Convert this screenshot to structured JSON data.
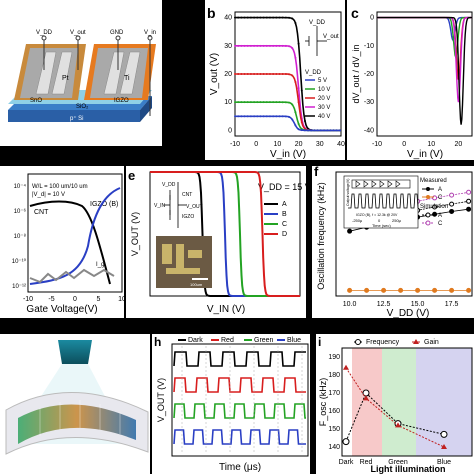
{
  "colors": {
    "black": "#000000",
    "blue": "#2a3fc4",
    "green": "#23a323",
    "red": "#d81e1e",
    "magenta": "#d020d0",
    "gray": "#777777",
    "orange": "#e07a1f",
    "purple": "#b040b0"
  },
  "panel_a": {
    "terminals": [
      "V_DD",
      "V_out",
      "GND",
      "V_in"
    ],
    "layers": [
      "Pt",
      "Ti",
      "SnO",
      "IGZO",
      "SiO₂",
      "p⁺ Si"
    ]
  },
  "panel_b": {
    "label": "b",
    "xlabel": "V_in (V)",
    "ylabel": "V_out (V)",
    "xticks": [
      "-10",
      "0",
      "10",
      "20",
      "30",
      "40"
    ],
    "yticks": [
      "0",
      "10",
      "20",
      "30",
      "40"
    ],
    "circuit": [
      "V_DD",
      "V_out"
    ],
    "legend_title": "V_DD",
    "legend": [
      "5 V",
      "10 V",
      "20 V",
      "30 V",
      "40 V"
    ]
  },
  "panel_c": {
    "label": "c",
    "xlabel": "V_in (V)",
    "ylabel": "dV_out / dV_in",
    "xticks": [
      "-10",
      "0",
      "10",
      "20"
    ],
    "yticks": [
      "0",
      "-10",
      "-20",
      "-30",
      "-40"
    ]
  },
  "panel_d": {
    "annotations": [
      "W/L = 100 um/10 um",
      "|V_d| = 10 V"
    ],
    "series_labels": [
      "CNT",
      "IGZO (B)",
      "I_g"
    ],
    "xlabel": "Gate Voltage(V)",
    "xticks": [
      "-10",
      "-5",
      "0",
      "5",
      "10"
    ],
    "yticks": [
      "10⁻⁴",
      "10⁻⁶",
      "10⁻⁸",
      "10⁻¹⁰",
      "10⁻¹²"
    ]
  },
  "panel_e": {
    "label": "e",
    "title": "V_DD = 15 V",
    "xlabel": "V_IN (V)",
    "ylabel": "V_OUT (V)",
    "circuit": [
      "V_DD",
      "V_IN",
      "CNT",
      "IGZO",
      "V_OUT"
    ],
    "inset_scale": "100um",
    "legend": [
      "A",
      "B",
      "C",
      "D"
    ]
  },
  "panel_f": {
    "label": "f",
    "ylabel": "Oscillation frequency (kHz)",
    "xlabel": "V_DD (V)",
    "xticks": [
      "10.0",
      "12.5",
      "15.0",
      "17.5"
    ],
    "inset": {
      "xlabel": "Time (sec)",
      "ylabel": "Output voltage(V)",
      "xticks": [
        "-250μ",
        "0",
        "250μ"
      ],
      "note": "IGZO (B), f = 12.3k @ 20V"
    },
    "legend": {
      "measured_title": "Measured",
      "measured": [
        "A",
        "C"
      ],
      "sim_title": "Simulation",
      "sim": [
        "A",
        "C"
      ]
    }
  },
  "panel_h": {
    "label": "h",
    "legend": [
      "Dark",
      "Red",
      "Green",
      "Blue"
    ],
    "xlabel": "Time (μs)",
    "ylabel": "V_OUT (V)"
  },
  "panel_i": {
    "label": "i",
    "legend": [
      "Frequency",
      "Gain"
    ],
    "ylabel": "F_osc (kHz)",
    "yticks": [
      "140",
      "150",
      "160",
      "170",
      "180",
      "190"
    ],
    "xticks": [
      "Dark",
      "Red",
      "Green",
      "Blue"
    ],
    "xlabel": "Light illumination"
  },
  "chart_data": [
    {
      "type": "line",
      "panel": "b",
      "series": [
        {
          "name": "5 V",
          "vmax": 5,
          "vm": 18
        },
        {
          "name": "10 V",
          "vmax": 10,
          "vm": 19
        },
        {
          "name": "20 V",
          "vmax": 20,
          "vm": 20
        },
        {
          "name": "30 V",
          "vmax": 30,
          "vm": 20
        },
        {
          "name": "40 V",
          "vmax": 40,
          "vm": 21
        }
      ],
      "xlim": [
        -10,
        40
      ],
      "ylim": [
        -2,
        42
      ]
    },
    {
      "type": "line",
      "panel": "c",
      "series": [
        {
          "vm": 18,
          "peak": -8
        },
        {
          "vm": 19,
          "peak": -14
        },
        {
          "vm": 20,
          "peak": -22
        },
        {
          "vm": 20,
          "peak": -30
        },
        {
          "vm": 21,
          "peak": -38
        }
      ],
      "xlim": [
        -10,
        25
      ],
      "ylim": [
        -42,
        2
      ]
    },
    {
      "type": "line",
      "panel": "e",
      "series": [
        {
          "name": "A",
          "vm": -3
        },
        {
          "name": "B",
          "vm": 0
        },
        {
          "name": "C",
          "vm": 2
        },
        {
          "name": "D",
          "vm": 5
        }
      ],
      "xlim": [
        -10,
        10
      ],
      "ylim": [
        0,
        15
      ]
    },
    {
      "type": "scatter",
      "panel": "f",
      "x": [
        10,
        11.25,
        12.5,
        13.75,
        15,
        16.25,
        17.5,
        18.75
      ],
      "series": [
        {
          "name": "A",
          "kind": "measured",
          "values": [
            11.5,
            12.2,
            12.8,
            13.4,
            14.0,
            14.5,
            15.0,
            15.4
          ]
        },
        {
          "name": "C",
          "kind": "measured",
          "values": [
            1.0,
            1.0,
            1.0,
            1.0,
            1.0,
            1.0,
            1.0,
            1.0
          ]
        },
        {
          "name": "A",
          "kind": "sim",
          "values": [
            12.5,
            13.2,
            13.9,
            14.6,
            15.2,
            15.8,
            16.3,
            16.8
          ]
        },
        {
          "name": "C",
          "kind": "sim",
          "values": [
            14.0,
            14.8,
            15.5,
            16.2,
            16.8,
            17.4,
            17.9,
            18.4
          ]
        }
      ],
      "ylim": [
        0,
        22
      ]
    },
    {
      "type": "line",
      "panel": "i",
      "categories": [
        "Dark",
        "Red",
        "Green",
        "Blue"
      ],
      "series": [
        {
          "name": "Frequency",
          "values": [
            143,
            170,
            153,
            147
          ]
        },
        {
          "name": "Gain",
          "values": [
            184,
            167,
            152,
            140
          ]
        }
      ],
      "ylim": [
        135,
        195
      ]
    }
  ]
}
